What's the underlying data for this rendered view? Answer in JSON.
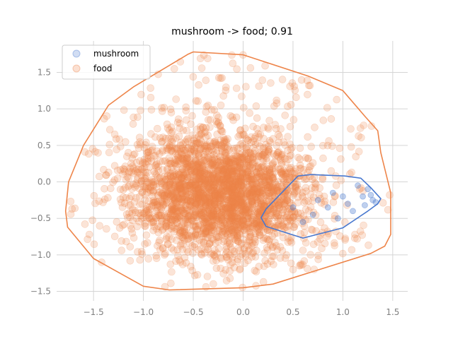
{
  "chart_data": {
    "type": "scatter",
    "title": "mushroom -> food; 0.91",
    "xlabel": "",
    "ylabel": "",
    "xlim": [
      -1.87,
      1.65
    ],
    "ylim": [
      -1.63,
      1.93
    ],
    "xticks": [
      -1.5,
      -1.0,
      -0.5,
      0.0,
      0.5,
      1.0,
      1.5
    ],
    "xtick_labels": [
      "−1.5",
      "−1.0",
      "−0.5",
      "0.0",
      "0.5",
      "1.0",
      "1.5"
    ],
    "yticks": [
      -1.5,
      -1.0,
      -0.5,
      0.0,
      0.5,
      1.0,
      1.5
    ],
    "ytick_labels": [
      "−1.5",
      "−1.0",
      "−0.5",
      "0.0",
      "0.5",
      "1.0",
      "1.5"
    ],
    "grid": true,
    "legend_position": "top-left",
    "series": [
      {
        "name": "mushroom",
        "color": "#4878cf",
        "hull": [
          [
            0.55,
            0.08
          ],
          [
            0.68,
            0.1
          ],
          [
            1.02,
            0.08
          ],
          [
            1.18,
            0.05
          ],
          [
            1.28,
            -0.08
          ],
          [
            1.38,
            -0.23
          ],
          [
            1.35,
            -0.3
          ],
          [
            1.25,
            -0.4
          ],
          [
            1.0,
            -0.63
          ],
          [
            0.6,
            -0.77
          ],
          [
            0.23,
            -0.61
          ],
          [
            0.18,
            -0.49
          ],
          [
            0.23,
            -0.37
          ],
          [
            0.55,
            0.08
          ]
        ],
        "points": [
          [
            0.75,
            -0.25
          ],
          [
            0.9,
            -0.15
          ],
          [
            1.05,
            -0.3
          ],
          [
            1.2,
            -0.2
          ],
          [
            1.3,
            -0.25
          ],
          [
            1.1,
            -0.4
          ],
          [
            0.95,
            -0.5
          ],
          [
            0.7,
            -0.45
          ],
          [
            0.5,
            -0.35
          ],
          [
            1.25,
            -0.1
          ],
          [
            1.33,
            -0.28
          ],
          [
            1.15,
            -0.05
          ],
          [
            0.85,
            -0.35
          ],
          [
            0.6,
            -0.55
          ],
          [
            1.0,
            -0.2
          ],
          [
            1.22,
            -0.32
          ],
          [
            1.28,
            -0.18
          ]
        ]
      },
      {
        "name": "food",
        "color": "#ee854a",
        "hull": [
          [
            -0.5,
            1.78
          ],
          [
            0.0,
            1.74
          ],
          [
            0.65,
            1.45
          ],
          [
            1.0,
            1.25
          ],
          [
            1.22,
            0.9
          ],
          [
            1.35,
            0.7
          ],
          [
            1.38,
            0.4
          ],
          [
            1.48,
            -0.15
          ],
          [
            1.48,
            -0.72
          ],
          [
            1.42,
            -0.88
          ],
          [
            1.28,
            -0.98
          ],
          [
            0.3,
            -1.4
          ],
          [
            0.0,
            -1.45
          ],
          [
            -0.74,
            -1.48
          ],
          [
            -1.0,
            -1.43
          ],
          [
            -1.5,
            -1.05
          ],
          [
            -1.76,
            -0.62
          ],
          [
            -1.78,
            -0.4
          ],
          [
            -1.75,
            0.0
          ],
          [
            -1.6,
            0.5
          ],
          [
            -1.35,
            1.05
          ],
          [
            -1.1,
            1.3
          ],
          [
            -0.55,
            1.75
          ],
          [
            -0.5,
            1.78
          ]
        ]
      }
    ]
  }
}
